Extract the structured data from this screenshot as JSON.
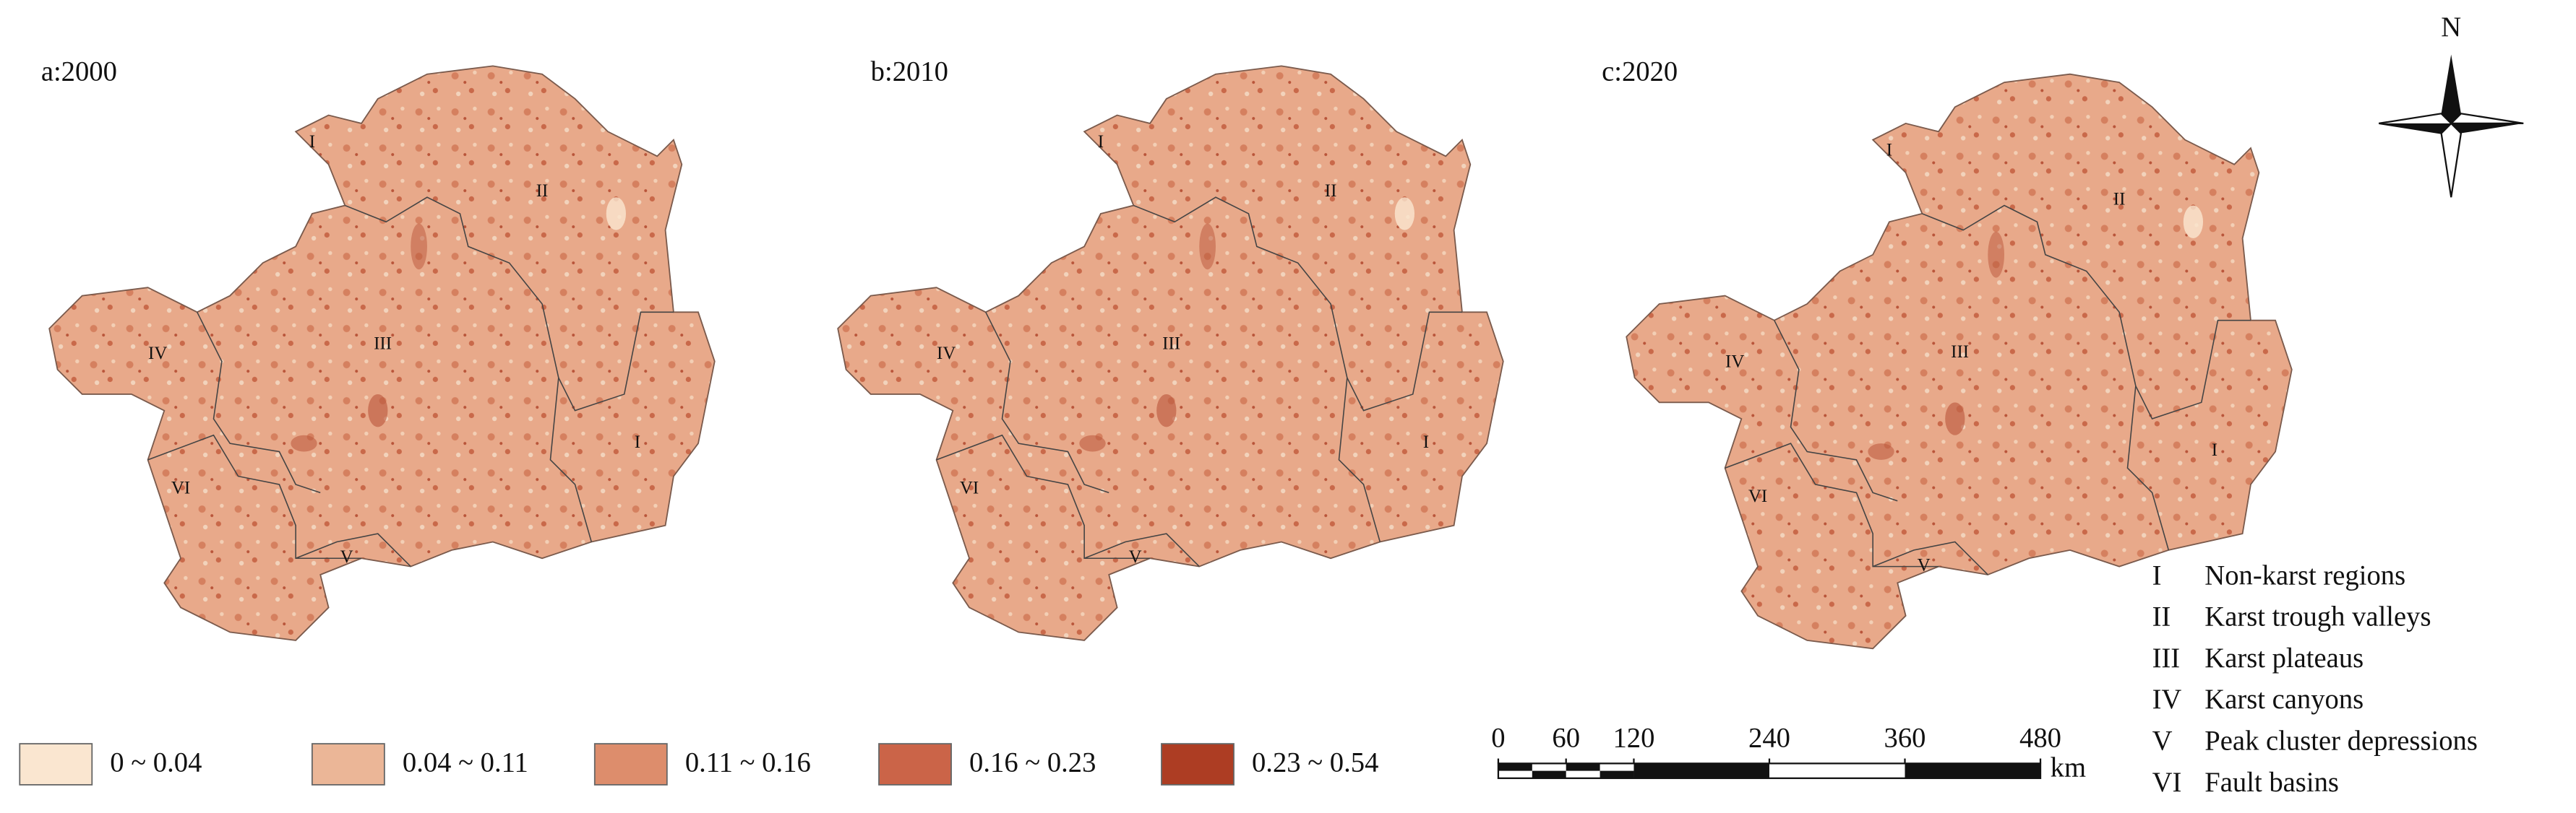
{
  "panels": [
    {
      "title": "a:2000",
      "regions": [
        "I",
        "II",
        "III",
        "IV",
        "V",
        "VI",
        "I"
      ]
    },
    {
      "title": "b:2010",
      "regions": [
        "I",
        "II",
        "III",
        "IV",
        "V",
        "VI",
        "I"
      ]
    },
    {
      "title": "c:2020",
      "regions": [
        "I",
        "II",
        "III",
        "IV",
        "V",
        "VI",
        "I"
      ]
    }
  ],
  "legend": [
    {
      "label": "0 ~ 0.04",
      "color": "#fae6d0"
    },
    {
      "label": "0.04 ~ 0.11",
      "color": "#ebb697"
    },
    {
      "label": "0.11 ~ 0.16",
      "color": "#dd8d6c"
    },
    {
      "label": "0.16 ~ 0.23",
      "color": "#cb6448"
    },
    {
      "label": "0.23 ~ 0.54",
      "color": "#ad3d23"
    }
  ],
  "scale_bar": {
    "ticks": [
      0,
      60,
      120,
      240,
      360,
      480
    ],
    "unit": "km"
  },
  "north": "N",
  "region_legend": [
    {
      "numeral": "I",
      "name": "Non-karst regions"
    },
    {
      "numeral": "II",
      "name": "Karst trough valleys"
    },
    {
      "numeral": "III",
      "name": "Karst plateaus"
    },
    {
      "numeral": "IV",
      "name": "Karst canyons"
    },
    {
      "numeral": "V",
      "name": "Peak cluster depressions"
    },
    {
      "numeral": "VI",
      "name": "Fault basins"
    }
  ]
}
